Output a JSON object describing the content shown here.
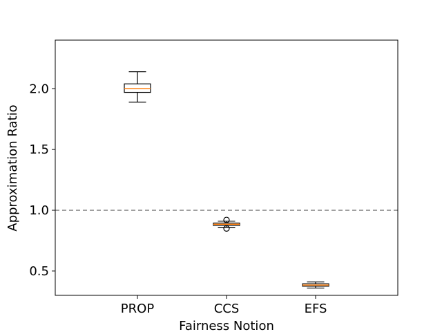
{
  "chart_data": {
    "type": "box",
    "title": "",
    "xlabel": "Fairness Notion",
    "ylabel": "Approximation Ratio",
    "ylim": [
      0.3,
      2.4
    ],
    "yticks": [
      0.5,
      1.0,
      1.5,
      2.0
    ],
    "ytick_labels": [
      "0.5",
      "1.0",
      "1.5",
      "2.0"
    ],
    "categories": [
      "PROP",
      "CCS",
      "EFS"
    ],
    "boxes": [
      {
        "category": "PROP",
        "whisker_low": 1.89,
        "q1": 1.97,
        "median": 2.0,
        "q3": 2.04,
        "whisker_high": 2.14,
        "outliers": []
      },
      {
        "category": "CCS",
        "whisker_low": 0.86,
        "q1": 0.875,
        "median": 0.885,
        "q3": 0.895,
        "whisker_high": 0.91,
        "outliers": [
          0.92,
          0.85
        ]
      },
      {
        "category": "EFS",
        "whisker_low": 0.36,
        "q1": 0.375,
        "median": 0.385,
        "q3": 0.395,
        "whisker_high": 0.41,
        "outliers": []
      }
    ],
    "reference_line": {
      "y": 1.0,
      "style": "dashed",
      "color": "#808080"
    },
    "grid": false,
    "colors": {
      "box": "#000000",
      "median": "#ff7f0e",
      "reference": "#808080"
    }
  }
}
